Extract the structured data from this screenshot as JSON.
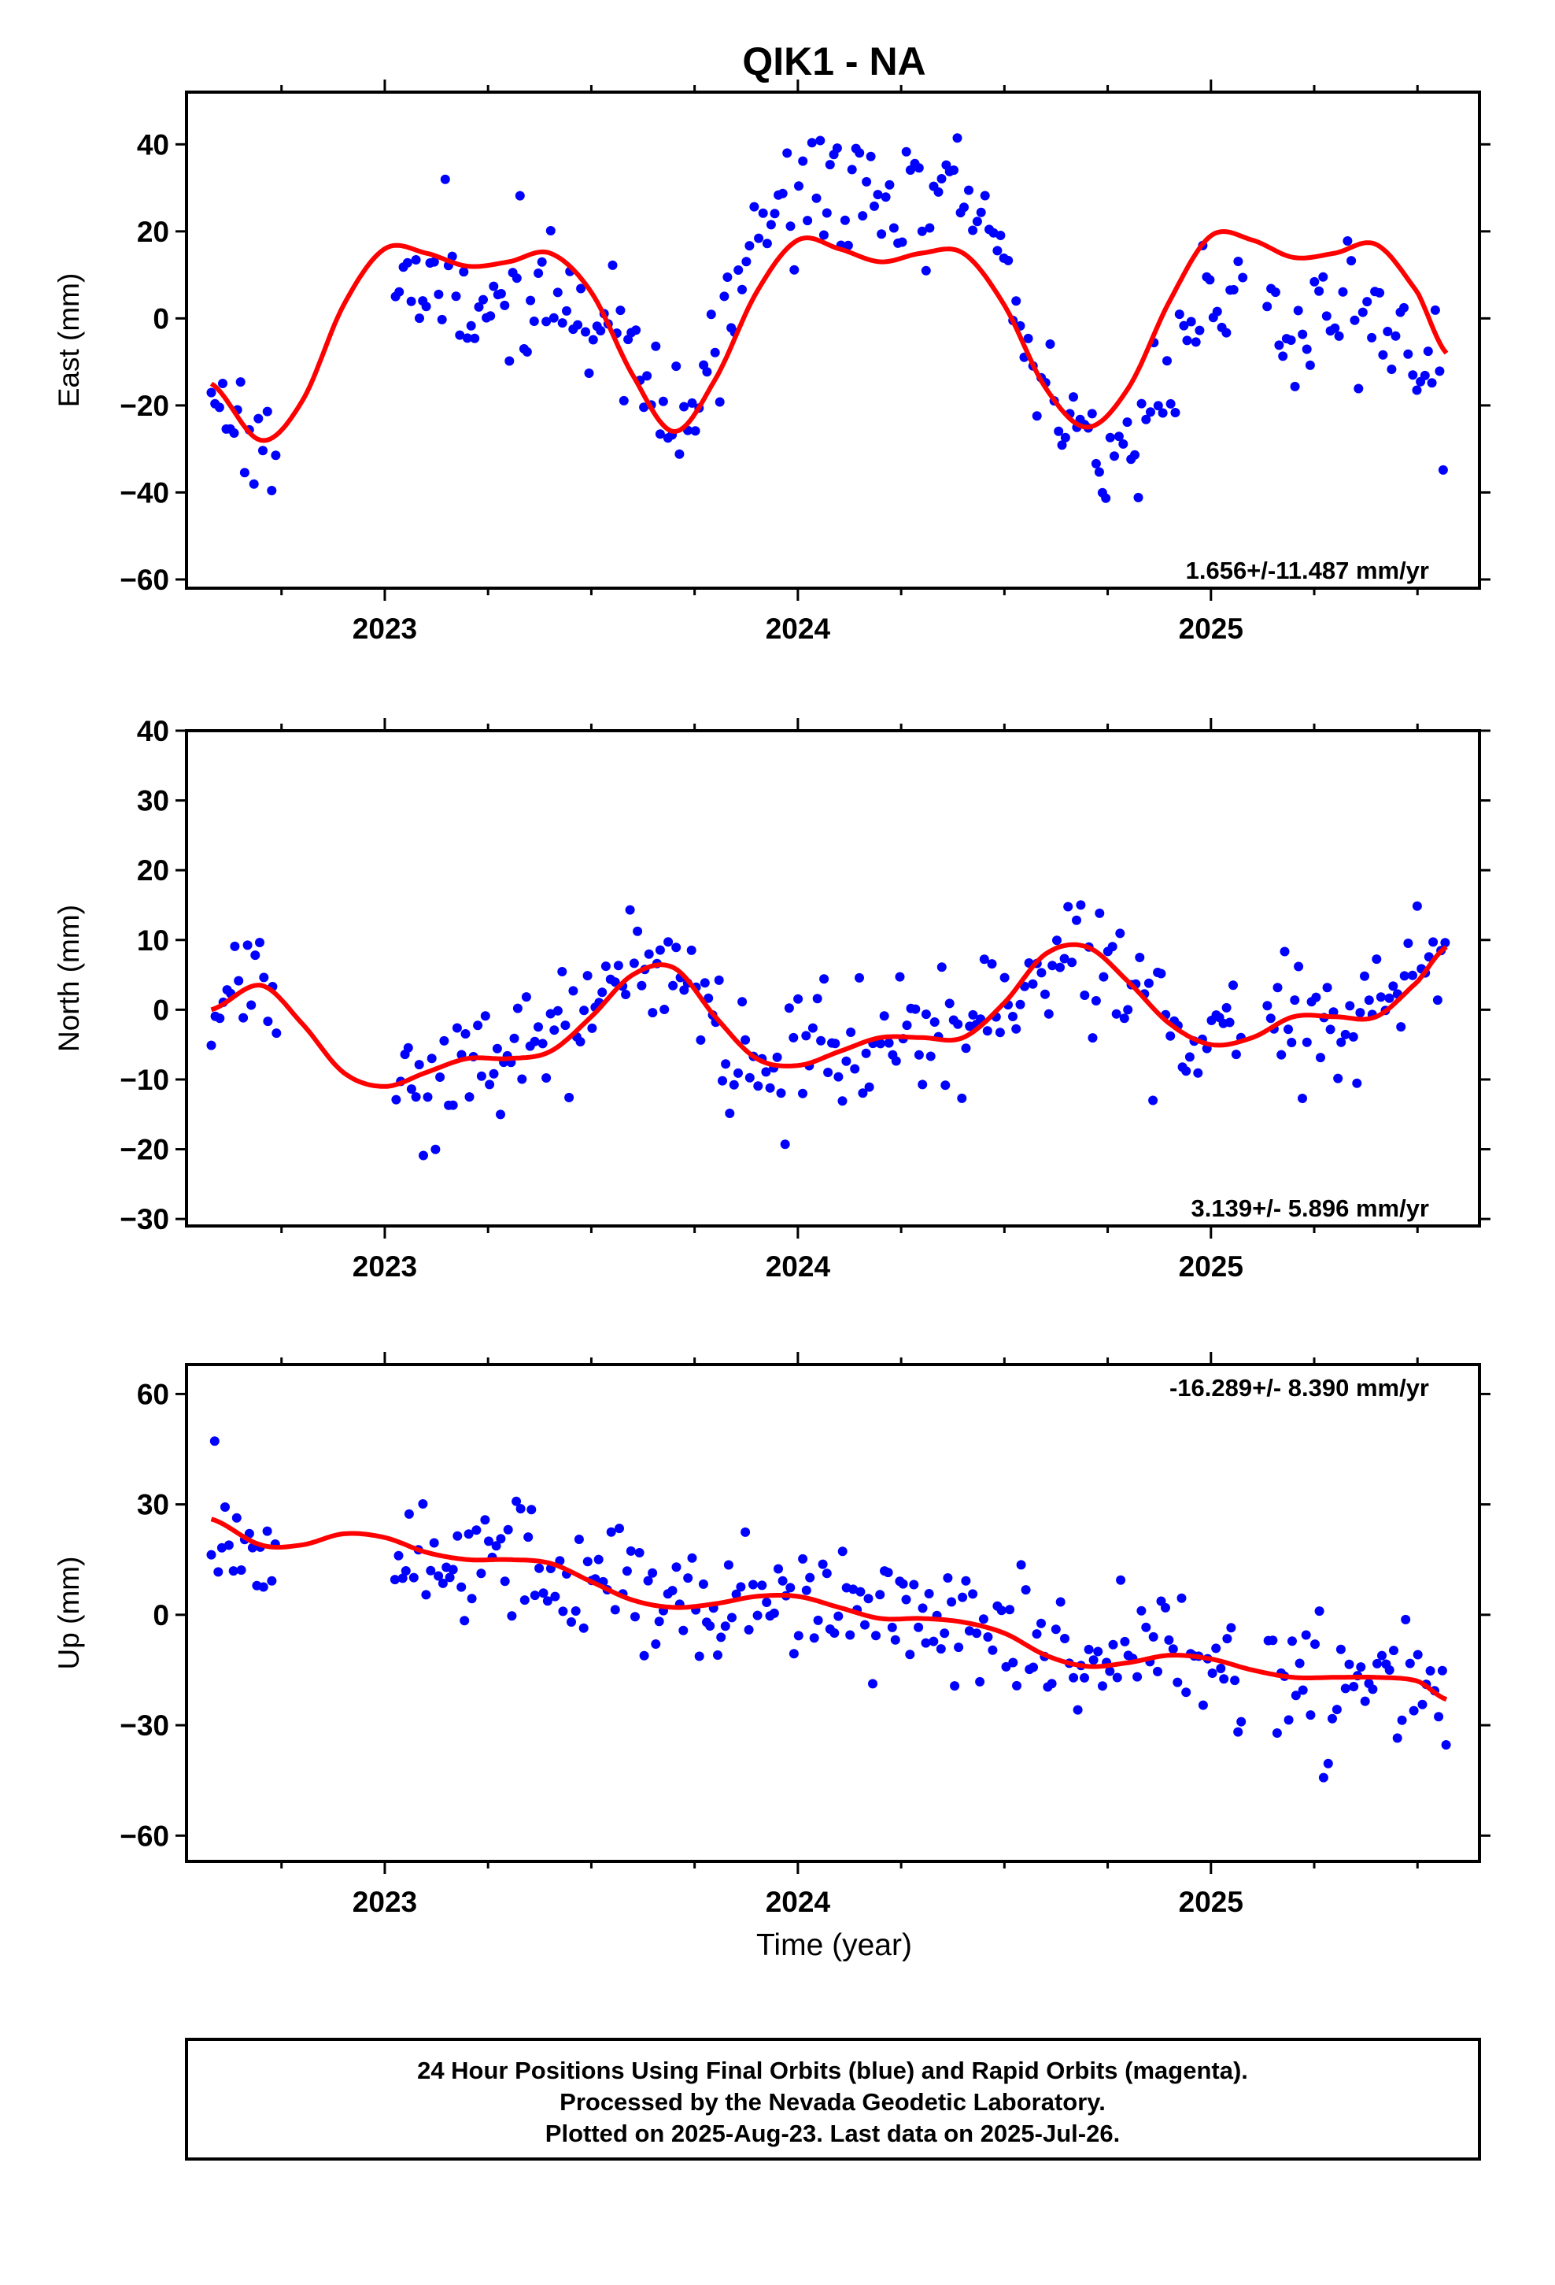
{
  "title": "QIK1 - NA",
  "xlabel": "Time (year)",
  "footer": {
    "line1": "24 Hour Positions Using Final Orbits (blue) and Rapid Orbits (magenta).",
    "line2": "Processed by the Nevada Geodetic Laboratory.",
    "line3": "Plotted on 2025-Aug-23. Last data on 2025-Jul-26."
  },
  "colors": {
    "final_orbits": "#0000ff",
    "model_fit": "#ff0000",
    "axis": "#000000"
  },
  "chart_data": [
    {
      "type": "scatter",
      "component": "east",
      "ylabel": "East (mm)",
      "rate_text": "1.656+/-11.487 mm/yr",
      "rate_position": "bottom-right",
      "xlim": [
        2022.52,
        2025.65
      ],
      "ylim": [
        -62,
        52
      ],
      "yticks": [
        40,
        20,
        0,
        -20,
        -40,
        -60
      ],
      "xticks": [
        2023,
        2024,
        2025
      ],
      "grid": false,
      "fit_curve": {
        "x": [
          2022.58,
          2022.7,
          2022.8,
          2022.9,
          2023.0,
          2023.1,
          2023.2,
          2023.3,
          2023.4,
          2023.5,
          2023.6,
          2023.7,
          2023.8,
          2023.9,
          2024.0,
          2024.1,
          2024.2,
          2024.3,
          2024.4,
          2024.5,
          2024.6,
          2024.7,
          2024.8,
          2024.9,
          2025.0,
          2025.1,
          2025.2,
          2025.3,
          2025.4,
          2025.5,
          2025.57
        ],
        "y": [
          -15,
          -28,
          -19,
          3,
          16,
          15,
          12,
          13,
          15,
          6,
          -13,
          -26,
          -14,
          6,
          18,
          16,
          13,
          15,
          15,
          3,
          -16,
          -25,
          -16,
          4,
          19,
          18,
          14,
          15,
          17,
          6,
          -8
        ]
      },
      "scatter_seed": 11
    },
    {
      "type": "scatter",
      "component": "north",
      "ylabel": "North (mm)",
      "rate_text": "3.139+/- 5.896 mm/yr",
      "rate_position": "bottom-right",
      "xlim": [
        2022.52,
        2025.65
      ],
      "ylim": [
        -31,
        40
      ],
      "yticks": [
        40,
        30,
        20,
        10,
        0,
        -10,
        -20,
        -30
      ],
      "xticks": [
        2023,
        2024,
        2025
      ],
      "grid": false,
      "fit_curve": {
        "x": [
          2022.58,
          2022.7,
          2022.8,
          2022.9,
          2023.0,
          2023.1,
          2023.2,
          2023.3,
          2023.4,
          2023.5,
          2023.6,
          2023.7,
          2023.8,
          2023.9,
          2024.0,
          2024.1,
          2024.2,
          2024.3,
          2024.4,
          2024.5,
          2024.6,
          2024.7,
          2024.8,
          2024.9,
          2025.0,
          2025.1,
          2025.2,
          2025.3,
          2025.4,
          2025.5,
          2025.57
        ],
        "y": [
          0,
          3.5,
          -2,
          -9,
          -11,
          -9,
          -7,
          -7,
          -6,
          -1,
          5,
          6,
          -1,
          -7,
          -8,
          -6,
          -4,
          -4,
          -4,
          1,
          8,
          9,
          4,
          -2,
          -5,
          -4,
          -1,
          -1,
          -1,
          4,
          9
        ]
      },
      "scatter_seed": 23
    },
    {
      "type": "scatter",
      "component": "up",
      "ylabel": "Up (mm)",
      "rate_text": "-16.289+/- 8.390 mm/yr",
      "rate_position": "top-right",
      "xlim": [
        2022.52,
        2025.65
      ],
      "ylim": [
        -67,
        68
      ],
      "yticks": [
        60,
        30,
        0,
        -30,
        -60
      ],
      "xticks": [
        2023,
        2024,
        2025
      ],
      "grid": false,
      "fit_curve": {
        "x": [
          2022.58,
          2022.7,
          2022.8,
          2022.9,
          2023.0,
          2023.1,
          2023.2,
          2023.3,
          2023.4,
          2023.5,
          2023.6,
          2023.7,
          2023.8,
          2023.9,
          2024.0,
          2024.1,
          2024.2,
          2024.3,
          2024.4,
          2024.5,
          2024.6,
          2024.7,
          2024.8,
          2024.9,
          2025.0,
          2025.1,
          2025.2,
          2025.3,
          2025.4,
          2025.5,
          2025.57
        ],
        "y": [
          26,
          19,
          19,
          22,
          21,
          17,
          15,
          15,
          14,
          9,
          4,
          2,
          3,
          5,
          5,
          2,
          -1,
          -1,
          -2,
          -5,
          -11,
          -14,
          -13,
          -11,
          -12,
          -15,
          -17,
          -17,
          -17,
          -18,
          -23
        ]
      },
      "scatter_seed": 37
    }
  ]
}
